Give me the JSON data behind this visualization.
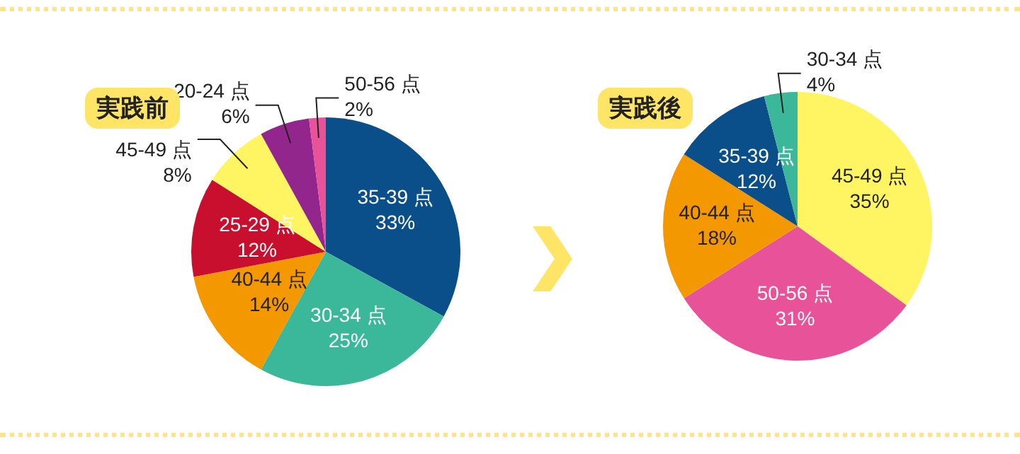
{
  "chart_data": [
    {
      "type": "pie",
      "title": "実践前",
      "categories": [
        "35-39 点",
        "30-34 点",
        "40-44 点",
        "25-29 点",
        "45-49 点",
        "20-24 点",
        "50-56 点"
      ],
      "values": [
        33,
        25,
        14,
        12,
        8,
        6,
        2
      ],
      "value_labels": [
        "33%",
        "25%",
        "14%",
        "12%",
        "8%",
        "6%",
        "2%"
      ],
      "colors": [
        "#0b4f8a",
        "#3bb89a",
        "#f39800",
        "#c8102e",
        "#fff462",
        "#92268c",
        "#e85298"
      ]
    },
    {
      "type": "pie",
      "title": "実践後",
      "categories": [
        "45-49 点",
        "50-56 点",
        "40-44 点",
        "35-39 点",
        "30-34 点"
      ],
      "values": [
        35,
        31,
        18,
        12,
        4
      ],
      "value_labels": [
        "35%",
        "31%",
        "18%",
        "12%",
        "4%"
      ],
      "colors": [
        "#fff462",
        "#e85298",
        "#f39800",
        "#0b4f8a",
        "#3bb89a"
      ]
    }
  ]
}
